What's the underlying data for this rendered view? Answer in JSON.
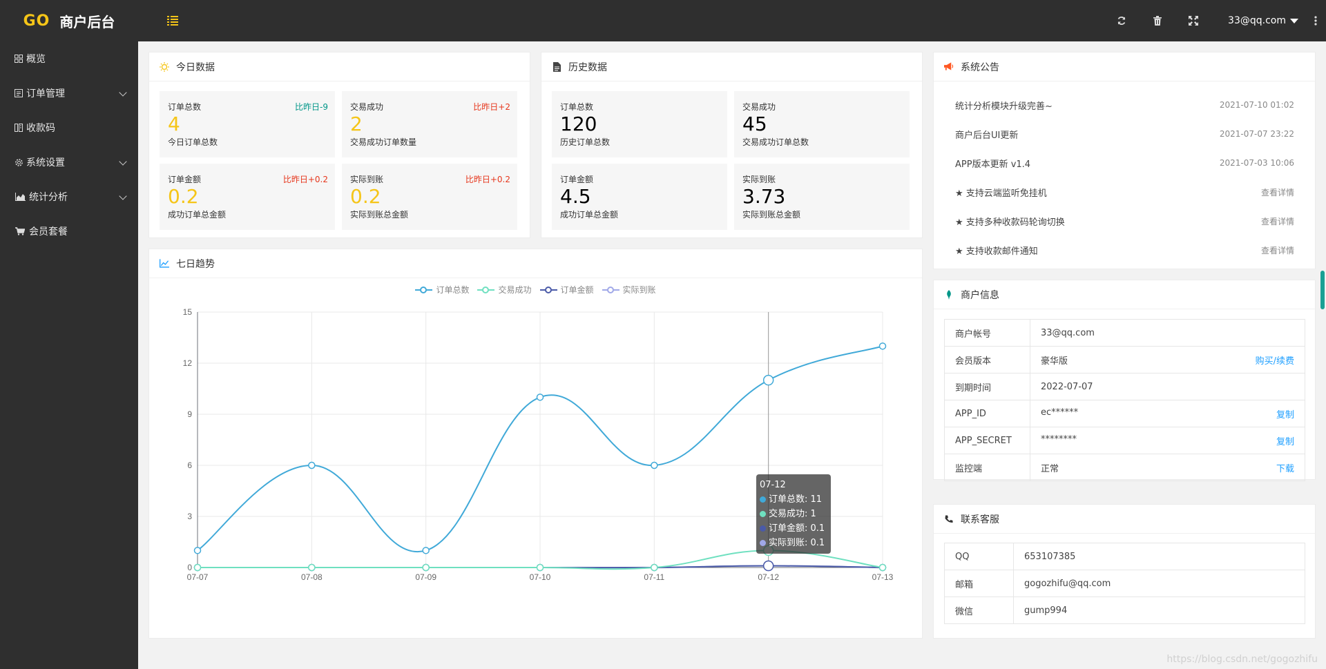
{
  "header": {
    "logo_go": "GO",
    "title": "商户后台",
    "user": "33@qq.com",
    "icons": [
      "refresh-icon",
      "trash-icon",
      "fullscreen-icon",
      "more-vertical-icon"
    ]
  },
  "sidebar": {
    "items": [
      {
        "label": "概览",
        "icon": "dashboard-icon"
      },
      {
        "label": "订单管理",
        "icon": "order-icon",
        "expandable": true
      },
      {
        "label": "收款码",
        "icon": "qrcode-icon"
      },
      {
        "label": "系统设置",
        "icon": "gear-icon",
        "expandable": true
      },
      {
        "label": "统计分析",
        "icon": "area-chart-icon",
        "expandable": true
      },
      {
        "label": "会员套餐",
        "icon": "cart-icon"
      }
    ]
  },
  "today": {
    "title": "今日数据",
    "stats": [
      {
        "label": "订单总数",
        "compare": "比昨日-9",
        "value": "4",
        "sub": "今日订单总数"
      },
      {
        "label": "交易成功",
        "compare": "比昨日+2",
        "value": "2",
        "sub": "交易成功订单数量"
      },
      {
        "label": "订单金额",
        "compare": "比昨日+0.2",
        "value": "0.2",
        "sub": "成功订单总金额"
      },
      {
        "label": "实际到账",
        "compare": "比昨日+0.2",
        "value": "0.2",
        "sub": "实际到账总金额"
      }
    ]
  },
  "history": {
    "title": "历史数据",
    "stats": [
      {
        "label": "订单总数",
        "value": "120",
        "sub": "历史订单总数"
      },
      {
        "label": "交易成功",
        "value": "45",
        "sub": "交易成功订单总数"
      },
      {
        "label": "订单金额",
        "value": "4.5",
        "sub": "成功订单总金额"
      },
      {
        "label": "实际到账",
        "value": "3.73",
        "sub": "实际到账总金额"
      }
    ]
  },
  "notice": {
    "title": "系统公告",
    "items": [
      {
        "text": "统计分析模块升级完善~",
        "date": "2021-07-10 01:02"
      },
      {
        "text": "商户后台UI更新",
        "date": "2021-07-07 23:22"
      },
      {
        "text": "APP版本更新 v1.4",
        "date": "2021-07-03 10:06"
      },
      {
        "text": "★ 支持云端监听免挂机",
        "date": "查看详情"
      },
      {
        "text": "★ 支持多种收款码轮询切换",
        "date": "查看详情"
      },
      {
        "text": "★ 支持收款邮件通知",
        "date": "查看详情"
      }
    ]
  },
  "merchant": {
    "title": "商户信息",
    "rows": [
      {
        "key": "商户帐号",
        "value": "33@qq.com",
        "action": ""
      },
      {
        "key": "会员版本",
        "value": "豪华版",
        "action": "购买/续费"
      },
      {
        "key": "到期时间",
        "value": "2022-07-07",
        "action": ""
      },
      {
        "key": "APP_ID",
        "value": "ec******",
        "action": "复制"
      },
      {
        "key": "APP_SECRET",
        "value": "********",
        "action": "复制"
      },
      {
        "key": "监控端",
        "value": "正常",
        "action": "下载"
      }
    ]
  },
  "contact": {
    "title": "联系客服",
    "rows": [
      {
        "key": "QQ",
        "value": "653107385"
      },
      {
        "key": "邮箱",
        "value": "gogozhifu@qq.com"
      },
      {
        "key": "微信",
        "value": "gump994"
      }
    ]
  },
  "trend": {
    "title": "七日趋势"
  },
  "tooltip": {
    "title": "07-12",
    "rows": [
      {
        "text": "订单总数: 11",
        "color": "#40a9d8"
      },
      {
        "text": "交易成功: 1",
        "color": "#6fe0c0"
      },
      {
        "text": "订单金额: 0.1",
        "color": "#4a5aa8"
      },
      {
        "text": "实际到账: 0.1",
        "color": "#a0a8e8"
      }
    ]
  },
  "watermark": "https://blog.csdn.net/gogozhifu",
  "chart_data": {
    "type": "line",
    "categories": [
      "07-07",
      "07-08",
      "07-09",
      "07-10",
      "07-11",
      "07-12",
      "07-13"
    ],
    "ylim": [
      0,
      15
    ],
    "yticks": [
      0,
      3,
      6,
      9,
      12,
      15
    ],
    "legend_position": "top-center",
    "grid": true,
    "smooth": true,
    "series": [
      {
        "name": "订单总数",
        "color": "#40a9d8",
        "values": [
          1,
          6,
          1,
          10,
          6,
          11,
          13
        ]
      },
      {
        "name": "交易成功",
        "color": "#6fe0c0",
        "values": [
          0,
          0,
          0,
          0,
          0,
          1,
          0
        ]
      },
      {
        "name": "订单金额",
        "color": "#4a5aa8",
        "values": [
          0,
          0,
          0,
          0,
          0,
          0.1,
          0
        ]
      },
      {
        "name": "实际到账",
        "color": "#a0a8e8",
        "values": [
          0,
          0,
          0,
          0,
          0,
          0.1,
          0
        ]
      }
    ],
    "highlight_category": "07-12"
  }
}
